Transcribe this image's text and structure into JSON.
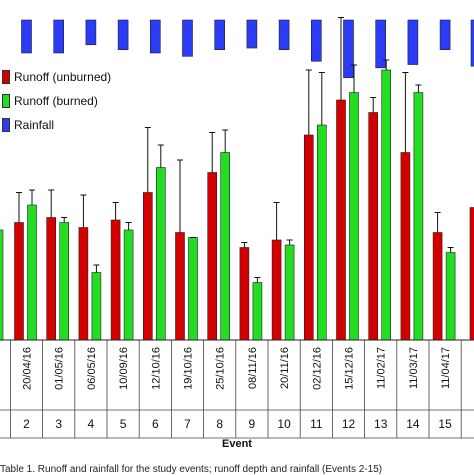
{
  "chart_data": {
    "type": "bar",
    "xlabel": "Event",
    "legend_placement": "top-left",
    "colors": {
      "unburned": "#d40000",
      "burned": "#22dd22",
      "rainfall": "#2a3cf5"
    },
    "dates": [
      "20/04/16",
      "01/05/16",
      "06/05/16",
      "10/09/16",
      "12/10/16",
      "19/10/16",
      "25/10/16",
      "08/11/16",
      "20/11/16",
      "02/12/16",
      "15/12/16",
      "11/02/17",
      "11/03/17",
      "11/04/17"
    ],
    "events": [
      "2",
      "3",
      "4",
      "5",
      "6",
      "7",
      "8",
      "9",
      "10",
      "11",
      "12",
      "13",
      "14",
      "15"
    ],
    "series": [
      {
        "name": "Runoff (unburned)",
        "values": [
          0.47,
          0.49,
          0.45,
          0.48,
          0.59,
          0.43,
          0.67,
          0.37,
          0.4,
          0.82,
          0.96,
          0.91,
          0.75,
          0.43
        ],
        "errors": [
          0.12,
          0.11,
          0.13,
          0.07,
          0.26,
          0.29,
          0.16,
          0.02,
          0.15,
          0.26,
          0.33,
          0.06,
          0.32,
          0.08
        ]
      },
      {
        "name": "Runoff (burned)",
        "values": [
          0.54,
          0.47,
          0.27,
          0.44,
          0.69,
          0.41,
          0.75,
          0.23,
          0.38,
          0.86,
          0.99,
          1.08,
          0.99,
          0.35
        ],
        "errors": [
          0.06,
          0.02,
          0.03,
          0.03,
          0.09,
          0.0,
          0.09,
          0.02,
          0.02,
          0.21,
          0.11,
          0.04,
          0.03,
          0.02
        ]
      },
      {
        "name": "Rainfall",
        "values": [
          0.2,
          0.2,
          0.15,
          0.18,
          0.2,
          0.22,
          0.18,
          0.17,
          0.18,
          0.25,
          0.35,
          0.29,
          0.27,
          0.18
        ]
      }
    ]
  },
  "caption": "Table 1. Runoff and rainfall for the study events; runoff depth and rainfall (Events 2-15)",
  "edge": {
    "left_burned_value": 0.44,
    "right_unburned_value": 0.53,
    "right_burned_value": 0.38,
    "right_rain_value": 0.28
  }
}
